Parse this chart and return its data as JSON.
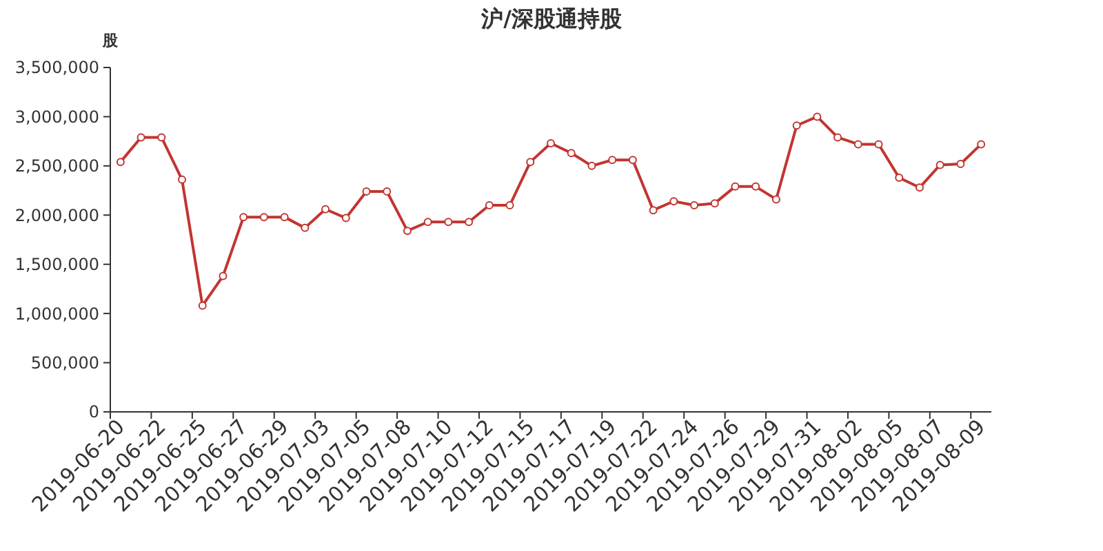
{
  "chart_data": {
    "type": "line",
    "title": "沪/深股通持股",
    "ylabel": "股",
    "categories": [
      "2019-06-20",
      null,
      "2019-06-22",
      null,
      "2019-06-25",
      null,
      "2019-06-27",
      null,
      "2019-06-29",
      null,
      "2019-07-03",
      null,
      "2019-07-05",
      null,
      "2019-07-08",
      null,
      "2019-07-10",
      null,
      "2019-07-12",
      null,
      "2019-07-15",
      null,
      "2019-07-17",
      null,
      "2019-07-19",
      null,
      "2019-07-22",
      null,
      "2019-07-24",
      null,
      "2019-07-26",
      null,
      "2019-07-29",
      null,
      "2019-07-31",
      null,
      "2019-08-02",
      null,
      "2019-08-05",
      null,
      "2019-08-07",
      null,
      "2019-08-09"
    ],
    "series": [
      {
        "color": "#c23531",
        "values": [
          2540000,
          2790000,
          2790000,
          2360000,
          1080000,
          1380000,
          1980000,
          1980000,
          1980000,
          1870000,
          2060000,
          1970000,
          2240000,
          2240000,
          1840000,
          1930000,
          1930000,
          1930000,
          2100000,
          2100000,
          2540000,
          2730000,
          2630000,
          2500000,
          2560000,
          2560000,
          2050000,
          2140000,
          2100000,
          2120000,
          2290000,
          2290000,
          2160000,
          2910000,
          3000000,
          2790000,
          2720000,
          2720000,
          2380000,
          2280000,
          2510000,
          2520000,
          2720000
        ]
      }
    ],
    "ylim": [
      0,
      3500000
    ],
    "yticks": [
      {
        "value": 0,
        "label": "0"
      },
      {
        "value": 500000,
        "label": "500,000"
      },
      {
        "value": 1000000,
        "label": "1,000,000"
      },
      {
        "value": 1500000,
        "label": "1,500,000"
      },
      {
        "value": 2000000,
        "label": "2,000,000"
      },
      {
        "value": 2500000,
        "label": "2,500,000"
      },
      {
        "value": 3000000,
        "label": "3,000,000"
      },
      {
        "value": 3500000,
        "label": "3,500,000"
      }
    ],
    "marker": "circle",
    "line_style": "solid"
  }
}
